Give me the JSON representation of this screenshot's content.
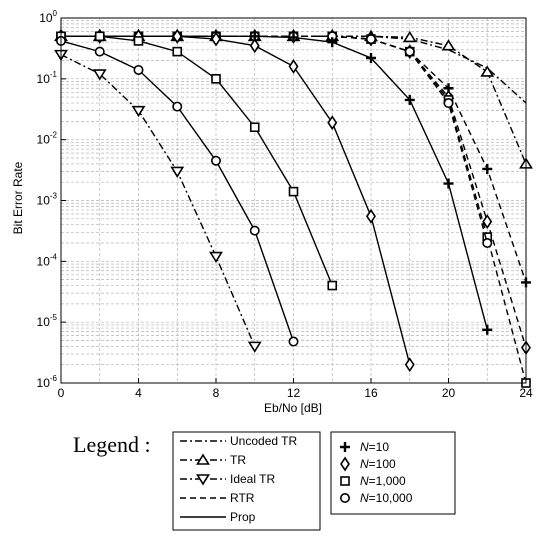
{
  "chart_data": {
    "type": "line",
    "xlabel": "Eb/No [dB]",
    "ylabel": "Bit Error Rate",
    "xlim": [
      0,
      24
    ],
    "ylim": [
      1e-06,
      1
    ],
    "yscale": "log",
    "grid": true,
    "x_ticks": [
      "0",
      "4",
      "8",
      "12",
      "16",
      "20",
      "24"
    ],
    "y_tick_exponents": [
      "0",
      "-1",
      "-2",
      "-3",
      "-4",
      "-5",
      "-6"
    ],
    "legend_title": "Legend :",
    "legend_methods": [
      "Uncoded TR",
      "TR",
      "Ideal TR",
      "RTR",
      "Prop"
    ],
    "legend_markers": [
      "N=10",
      "N=100",
      "N=1,000",
      "N=10,000"
    ],
    "series": [
      {
        "method": "Uncoded TR",
        "style": "dashdot",
        "marker": "none",
        "x": [
          0,
          2,
          4,
          6,
          8,
          10,
          12,
          14,
          16,
          18,
          20,
          22,
          24
        ],
        "y": [
          0.5,
          0.5,
          0.5,
          0.5,
          0.5,
          0.5,
          0.5,
          0.5,
          0.5,
          0.45,
          0.3,
          0.15,
          0.04
        ]
      },
      {
        "method": "TR",
        "style": "dashdot",
        "marker": "triangle-up",
        "x": [
          0,
          2,
          4,
          6,
          8,
          10,
          12,
          14,
          16,
          18,
          20,
          22,
          24
        ],
        "y": [
          0.5,
          0.5,
          0.5,
          0.5,
          0.5,
          0.5,
          0.5,
          0.5,
          0.5,
          0.48,
          0.35,
          0.13,
          0.004
        ]
      },
      {
        "method": "Ideal TR",
        "style": "dashdot",
        "marker": "triangle-down",
        "x": [
          0,
          2,
          4,
          6,
          8,
          10
        ],
        "y": [
          0.25,
          0.12,
          0.03,
          0.003,
          0.00012,
          4e-06
        ]
      },
      {
        "method": "RTR",
        "marker": "plus",
        "style": "dashed",
        "x": [
          0,
          2,
          4,
          6,
          8,
          10,
          12,
          14,
          16,
          18,
          20,
          22,
          24
        ],
        "y": [
          0.5,
          0.5,
          0.5,
          0.5,
          0.5,
          0.5,
          0.5,
          0.5,
          0.45,
          0.28,
          0.07,
          0.0033,
          4.5e-05
        ]
      },
      {
        "method": "RTR",
        "marker": "diamond",
        "style": "dashed",
        "x": [
          0,
          2,
          4,
          6,
          8,
          10,
          12,
          14,
          16,
          18,
          20,
          22,
          24
        ],
        "y": [
          0.5,
          0.5,
          0.5,
          0.5,
          0.5,
          0.5,
          0.5,
          0.5,
          0.45,
          0.28,
          0.05,
          0.00045,
          3.8e-06
        ]
      },
      {
        "method": "RTR",
        "marker": "square",
        "style": "dashed",
        "x": [
          0,
          2,
          4,
          6,
          8,
          10,
          12,
          14,
          16,
          18,
          20,
          22,
          24
        ],
        "y": [
          0.5,
          0.5,
          0.5,
          0.5,
          0.5,
          0.5,
          0.5,
          0.5,
          0.45,
          0.28,
          0.045,
          0.00025,
          1e-06
        ]
      },
      {
        "method": "RTR",
        "marker": "circle",
        "style": "dashed",
        "x": [
          0,
          2,
          4,
          6,
          8,
          10,
          12,
          14,
          16,
          18,
          20,
          22
        ],
        "y": [
          0.5,
          0.5,
          0.5,
          0.5,
          0.5,
          0.5,
          0.5,
          0.5,
          0.45,
          0.28,
          0.04,
          0.0002
        ]
      },
      {
        "method": "Prop",
        "marker": "plus",
        "style": "solid",
        "x": [
          0,
          2,
          4,
          6,
          8,
          10,
          12,
          14,
          16,
          18,
          20,
          22
        ],
        "y": [
          0.5,
          0.5,
          0.5,
          0.5,
          0.5,
          0.5,
          0.48,
          0.4,
          0.22,
          0.045,
          0.0019,
          7.5e-06
        ]
      },
      {
        "method": "Prop",
        "marker": "diamond",
        "style": "solid",
        "x": [
          0,
          2,
          4,
          6,
          8,
          10,
          12,
          14,
          16,
          18
        ],
        "y": [
          0.5,
          0.5,
          0.5,
          0.5,
          0.45,
          0.35,
          0.16,
          0.019,
          0.00055,
          2e-06
        ]
      },
      {
        "method": "Prop",
        "marker": "square",
        "style": "solid",
        "x": [
          0,
          2,
          4,
          6,
          8,
          10,
          12,
          14
        ],
        "y": [
          0.5,
          0.5,
          0.42,
          0.28,
          0.1,
          0.016,
          0.0014,
          4e-05
        ]
      },
      {
        "method": "Prop",
        "marker": "circle",
        "style": "solid",
        "x": [
          0,
          2,
          4,
          6,
          8,
          10,
          12
        ],
        "y": [
          0.42,
          0.28,
          0.14,
          0.035,
          0.0045,
          0.00032,
          4.8e-06
        ]
      }
    ]
  }
}
